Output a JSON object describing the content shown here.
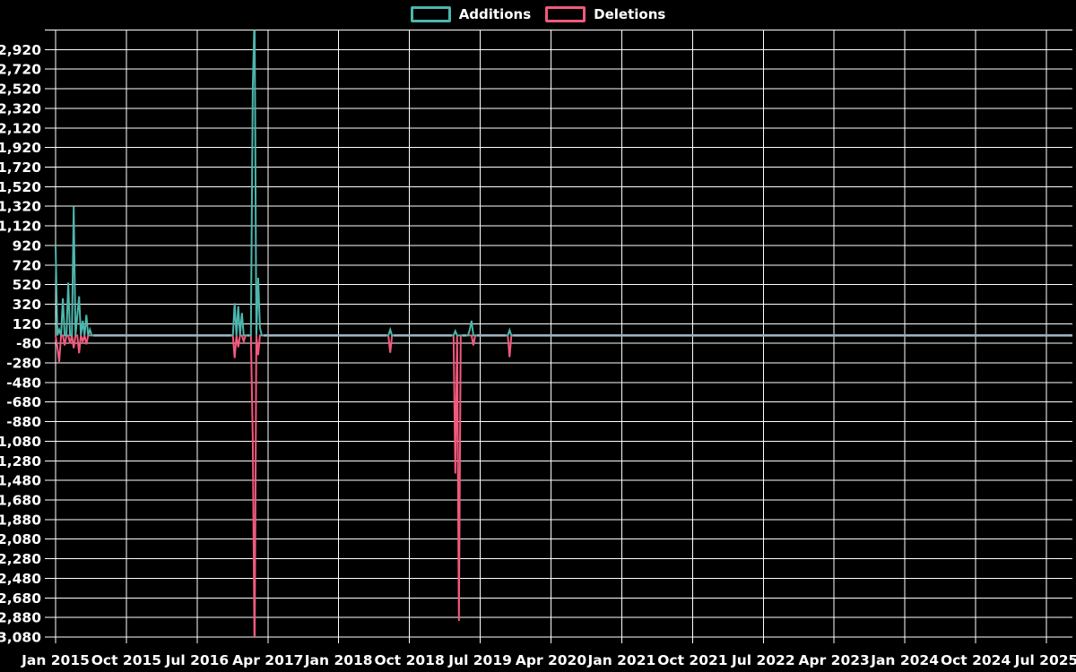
{
  "legend": {
    "additions_label": "Additions",
    "deletions_label": "Deletions"
  },
  "colors": {
    "background": "#000000",
    "grid": "#ffffff",
    "text": "#ffffff",
    "additions": "#4db6ac",
    "deletions": "#f2597d",
    "zero_baseline": "#9fb6c4"
  },
  "chart_data": {
    "type": "line",
    "title": "",
    "legend_position": "top-center",
    "grid": true,
    "background": "black",
    "x_start": "Jan 2015",
    "x_end": "Jul 2025",
    "x_tick_interval_months": 9,
    "x_tick_labels": [
      "Jan 2015",
      "Oct 2015",
      "Jul 2016",
      "Apr 2017",
      "Jan 2018",
      "Oct 2018",
      "Jul 2019",
      "Apr 2020",
      "Jan 2021",
      "Oct 2021",
      "Jul 2022",
      "Apr 2023",
      "Jan 2024",
      "Oct 2024",
      "Jul 2025"
    ],
    "y_axis": {
      "max": 2920,
      "min": -3080,
      "step": 200,
      "gridline_top": 3120,
      "tick_labels": [
        "2,920",
        "2,720",
        "2,520",
        "2,320",
        "2,120",
        "1,920",
        "1,720",
        "1,520",
        "1,320",
        "1,120",
        "920",
        "720",
        "520",
        "320",
        "120",
        "-80",
        "-280",
        "-480",
        "-680",
        "-880",
        "-1,080",
        "-1,280",
        "-1,480",
        "-1,680",
        "-1,880",
        "-2,080",
        "-2,280",
        "-2,480",
        "-2,680",
        "-2,880",
        "-3,080"
      ]
    },
    "resolution": "weekly",
    "weeks_total": 563,
    "default_value": 0,
    "series": [
      {
        "name": "Additions",
        "color": "#4db6ac",
        "weekly_values": {
          "0": 920,
          "2": 60,
          "4": 380,
          "7": 540,
          "10": 1320,
          "12": 200,
          "13": 400,
          "15": 150,
          "17": 210,
          "19": 60,
          "99": 330,
          "101": 300,
          "103": 230,
          "109": 2530,
          "110": 3300,
          "112": 590,
          "113": 80,
          "185": 60,
          "221": 45,
          "229": 60,
          "230": 150,
          "251": 55
        }
      },
      {
        "name": "Deletions",
        "color": "#f2597d",
        "weekly_values": {
          "1": -120,
          "2": -270,
          "5": -100,
          "8": -80,
          "10": -130,
          "13": -180,
          "15": -60,
          "17": -90,
          "99": -230,
          "101": -120,
          "104": -60,
          "109": -1060,
          "110": -3300,
          "112": -200,
          "185": -175,
          "221": -1410,
          "223": -2915,
          "231": -100,
          "251": -220
        }
      }
    ]
  }
}
